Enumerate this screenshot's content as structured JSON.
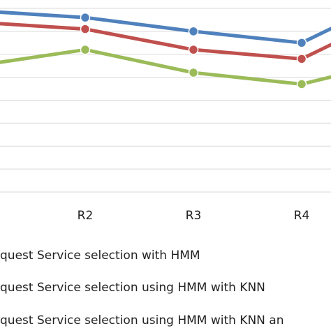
{
  "chart_data": {
    "type": "line",
    "categories": [
      "R2",
      "R3",
      "R4"
    ],
    "series": [
      {
        "name": "quest Service selection with HMM",
        "color": "#4F81BD",
        "values": [
          96,
          90,
          85
        ]
      },
      {
        "name": "quest Service selection using HMM with KNN",
        "color": "#C0504D",
        "values": [
          91,
          82,
          78
        ]
      },
      {
        "name": "quest Service selection using HMM with KNN an",
        "color": "#9BBB59",
        "values": [
          82,
          72,
          67
        ]
      }
    ],
    "edge_values": {
      "left": [
        99,
        94,
        75
      ],
      "right": [
        95,
        88,
        72
      ]
    },
    "grid": true,
    "legend_position": "bottom"
  }
}
